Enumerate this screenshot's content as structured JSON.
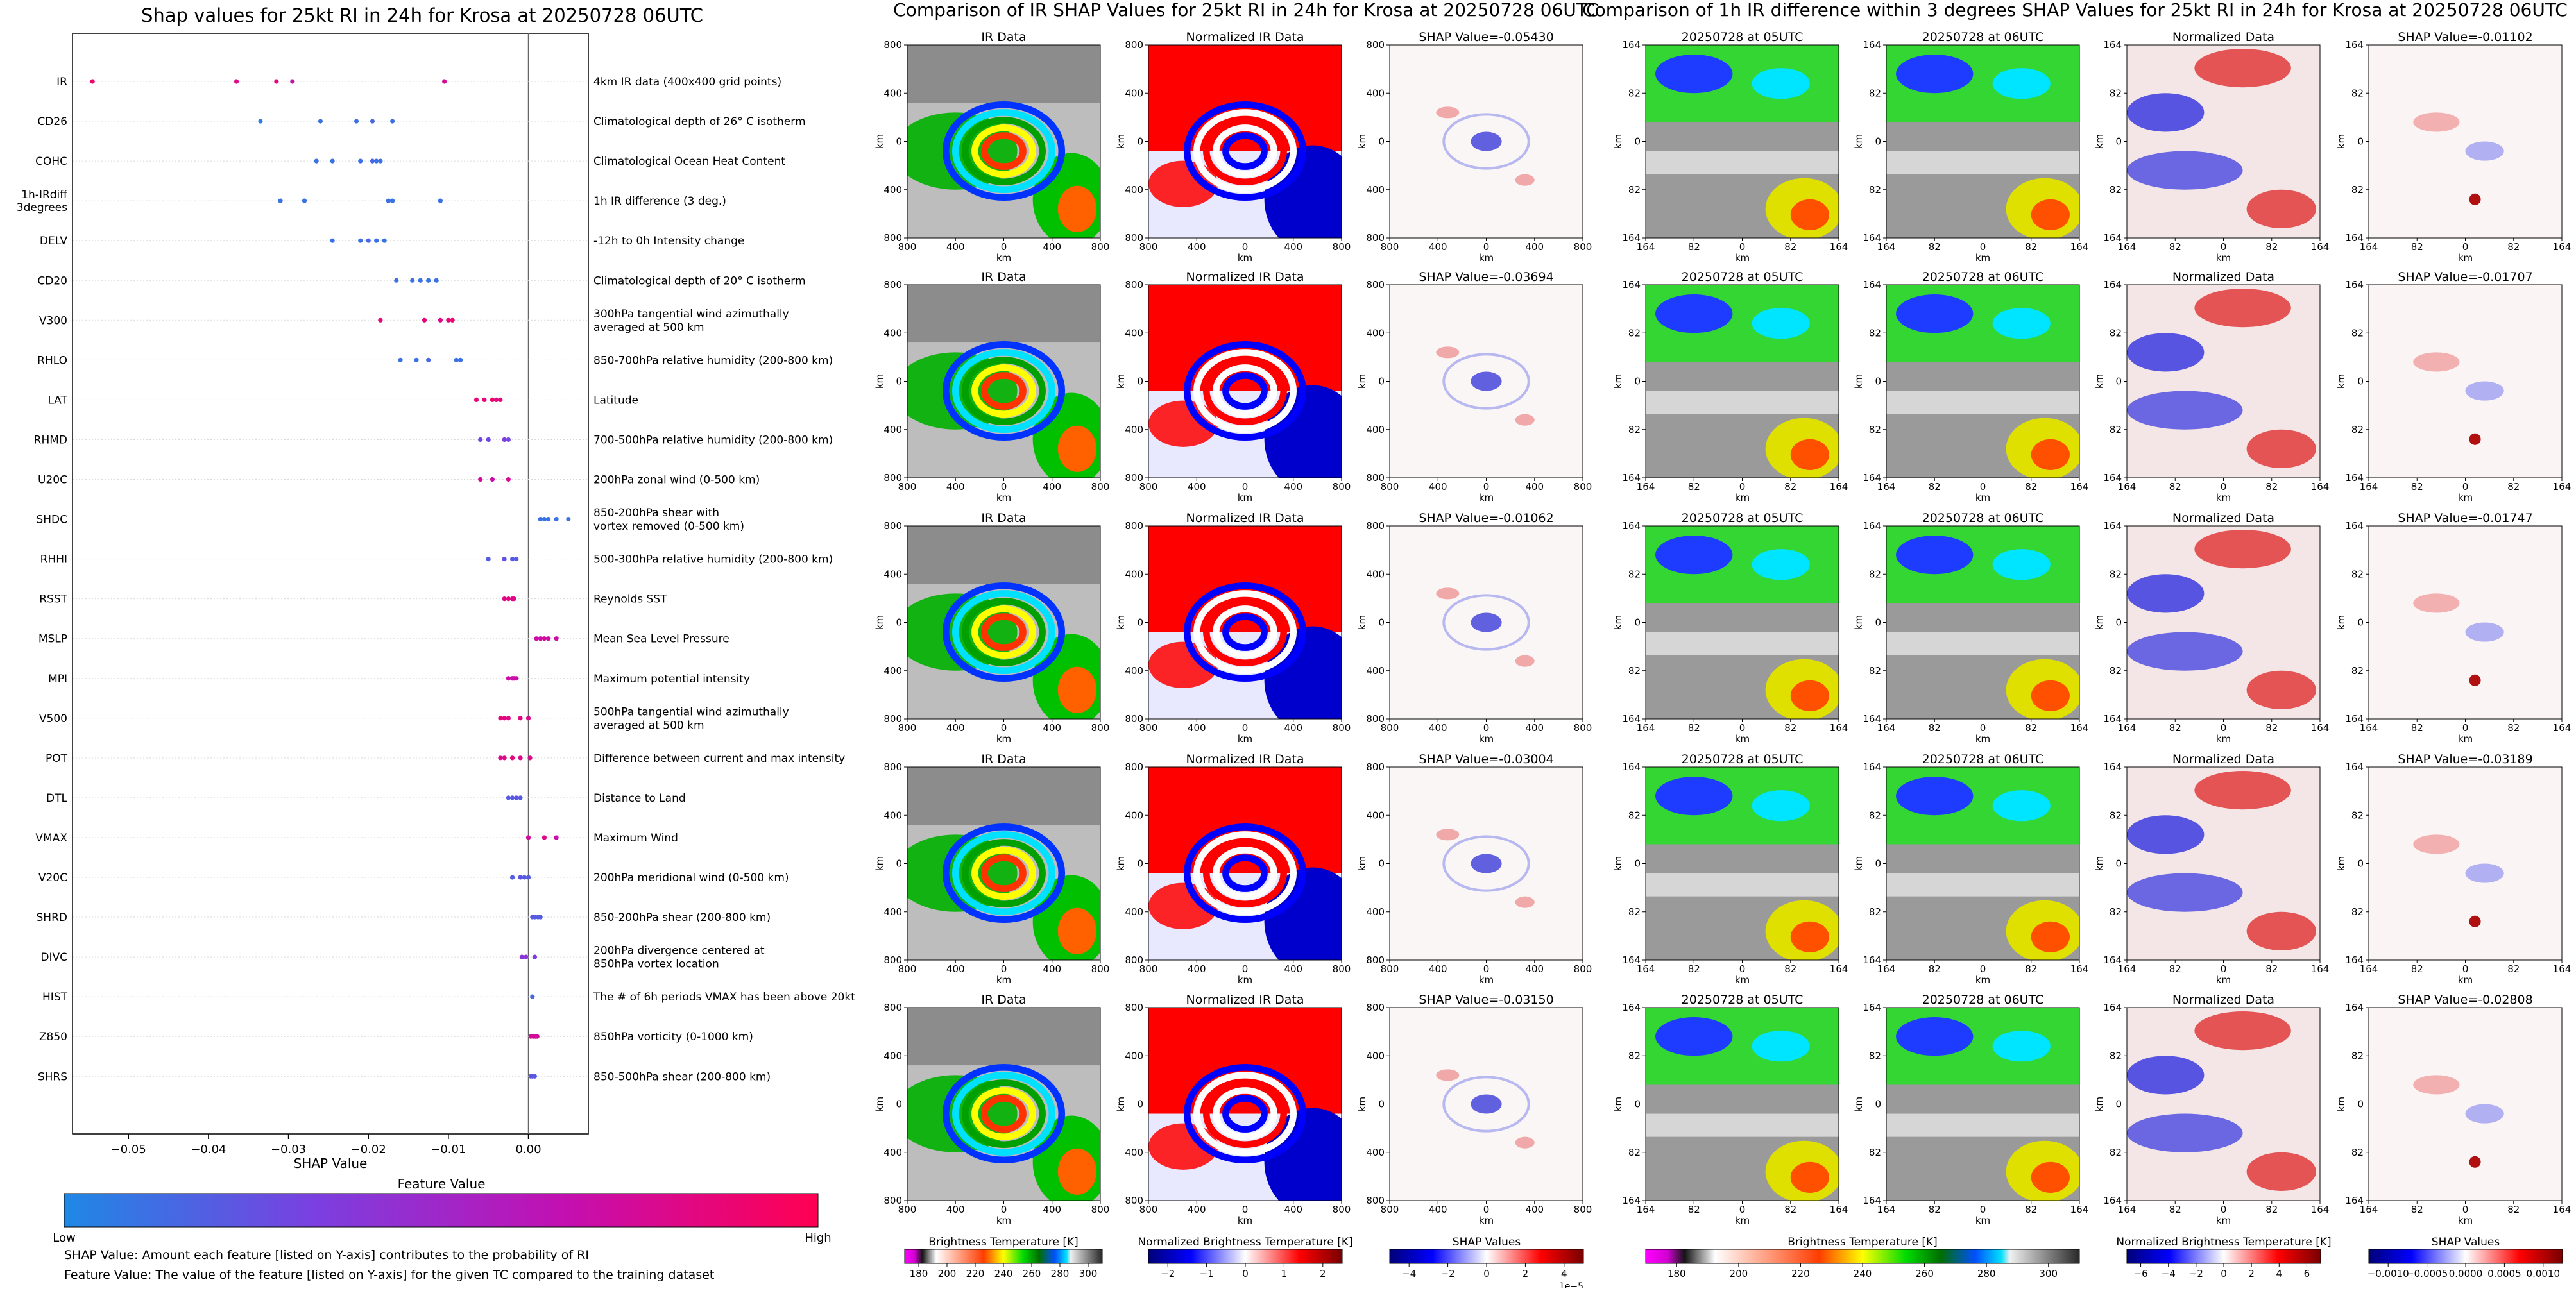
{
  "left_title": "Shap values for 25kt RI in 24h for Krosa at 20250728 06UTC",
  "mid_title": "Comparison of IR SHAP Values for 25kt RI in 24h for Krosa at 20250728 06UTC",
  "right_title": "Comparison of 1h IR difference within 3 degrees SHAP Values for 25kt RI in 24h for Krosa at 20250728 06UTC",
  "notes": {
    "line1": "SHAP Value: Amount each feature [listed on Y-axis] contributes to the probability of RI",
    "line2": "Feature Value: The value of the feature [listed on Y-axis] for the given TC compared to the training dataset"
  },
  "feature_colorbar": {
    "title": "Feature Value",
    "low": "Low",
    "high": "High",
    "colors": [
      "#1e88e5",
      "#7b3fe0",
      "#c40fb0",
      "#ff0052"
    ]
  },
  "chart_data": [
    {
      "type": "scatter",
      "title": "Shap values for 25kt RI in 24h for Krosa at 20250728 06UTC",
      "xlabel": "SHAP Value",
      "xlim": [
        -0.057,
        0.0075
      ],
      "xticks": [
        -0.05,
        -0.04,
        -0.03,
        -0.02,
        -0.01,
        0.0
      ],
      "xtick_labels": [
        "−0.05",
        "−0.04",
        "−0.03",
        "−0.02",
        "−0.01",
        "0.00"
      ],
      "features": [
        {
          "name": "IR",
          "desc": [
            "4km IR data (400x400 grid points)"
          ],
          "points": [
            [
              -0.0545,
              0.9
            ],
            [
              -0.0365,
              0.8
            ],
            [
              -0.0315,
              0.85
            ],
            [
              -0.0295,
              0.7
            ],
            [
              -0.0105,
              0.75
            ]
          ]
        },
        {
          "name": "CD26",
          "desc": [
            "Climatological depth of 26° C isotherm"
          ],
          "points": [
            [
              -0.0335,
              0.05
            ],
            [
              -0.026,
              0.1
            ],
            [
              -0.0215,
              0.1
            ],
            [
              -0.0195,
              0.15
            ],
            [
              -0.017,
              0.1
            ]
          ]
        },
        {
          "name": "COHC",
          "desc": [
            "Climatological Ocean Heat Content"
          ],
          "points": [
            [
              -0.0265,
              0.1
            ],
            [
              -0.0245,
              0.1
            ],
            [
              -0.021,
              0.1
            ],
            [
              -0.0195,
              0.15
            ],
            [
              -0.019,
              0.1
            ],
            [
              -0.0185,
              0.1
            ]
          ]
        },
        {
          "name": "1h-IRdiff|3degrees",
          "desc": [
            "1h IR difference (3 deg.)"
          ],
          "points": [
            [
              -0.031,
              0.1
            ],
            [
              -0.028,
              0.1
            ],
            [
              -0.0175,
              0.1
            ],
            [
              -0.017,
              0.1
            ],
            [
              -0.011,
              0.1
            ]
          ]
        },
        {
          "name": "DELV",
          "desc": [
            "-12h to 0h Intensity change"
          ],
          "points": [
            [
              -0.0245,
              0.1
            ],
            [
              -0.021,
              0.1
            ],
            [
              -0.02,
              0.15
            ],
            [
              -0.019,
              0.1
            ],
            [
              -0.018,
              0.1
            ]
          ]
        },
        {
          "name": "CD20",
          "desc": [
            "Climatological depth of 20° C isotherm"
          ],
          "points": [
            [
              -0.0165,
              0.1
            ],
            [
              -0.0145,
              0.1
            ],
            [
              -0.0135,
              0.1
            ],
            [
              -0.0125,
              0.1
            ],
            [
              -0.0115,
              0.1
            ]
          ]
        },
        {
          "name": "V300",
          "desc": [
            "300hPa tangential wind azimuthally",
            "averaged at 500 km"
          ],
          "points": [
            [
              -0.0185,
              0.85
            ],
            [
              -0.013,
              0.85
            ],
            [
              -0.011,
              0.8
            ],
            [
              -0.01,
              0.85
            ],
            [
              -0.0095,
              0.9
            ]
          ]
        },
        {
          "name": "RHLO",
          "desc": [
            "850-700hPa relative humidity (200-800 km)"
          ],
          "points": [
            [
              -0.016,
              0.1
            ],
            [
              -0.014,
              0.1
            ],
            [
              -0.0125,
              0.15
            ],
            [
              -0.009,
              0.1
            ],
            [
              -0.0085,
              0.1
            ]
          ]
        },
        {
          "name": "LAT",
          "desc": [
            "Latitude"
          ],
          "points": [
            [
              -0.0065,
              0.85
            ],
            [
              -0.0055,
              0.85
            ],
            [
              -0.0045,
              0.9
            ],
            [
              -0.004,
              0.85
            ],
            [
              -0.0035,
              0.85
            ]
          ]
        },
        {
          "name": "RHMD",
          "desc": [
            "700-500hPa relative humidity (200-800 km)"
          ],
          "points": [
            [
              -0.006,
              0.3
            ],
            [
              -0.005,
              0.3
            ],
            [
              -0.003,
              0.35
            ],
            [
              -0.0025,
              0.3
            ]
          ]
        },
        {
          "name": "U20C",
          "desc": [
            "200hPa zonal wind (0-500 km)"
          ],
          "points": [
            [
              -0.006,
              0.75
            ],
            [
              -0.0045,
              0.7
            ],
            [
              -0.0025,
              0.75
            ]
          ]
        },
        {
          "name": "SHDC",
          "desc": [
            "850-200hPa shear with",
            "vortex removed (0-500 km)"
          ],
          "points": [
            [
              0.0015,
              0.1
            ],
            [
              0.002,
              0.1
            ],
            [
              0.0025,
              0.1
            ],
            [
              0.0035,
              0.1
            ],
            [
              0.005,
              0.1
            ]
          ]
        },
        {
          "name": "RHHI",
          "desc": [
            "500-300hPa relative humidity (200-800 km)"
          ],
          "points": [
            [
              -0.005,
              0.2
            ],
            [
              -0.003,
              0.25
            ],
            [
              -0.002,
              0.2
            ],
            [
              -0.0015,
              0.2
            ]
          ]
        },
        {
          "name": "RSST",
          "desc": [
            "Reynolds SST"
          ],
          "points": [
            [
              -0.003,
              0.8
            ],
            [
              -0.0025,
              0.85
            ],
            [
              -0.002,
              0.8
            ],
            [
              -0.0018,
              0.8
            ]
          ]
        },
        {
          "name": "MSLP",
          "desc": [
            "Mean Sea Level Pressure"
          ],
          "points": [
            [
              0.001,
              0.7
            ],
            [
              0.0015,
              0.7
            ],
            [
              0.002,
              0.75
            ],
            [
              0.0025,
              0.7
            ],
            [
              0.0035,
              0.7
            ]
          ]
        },
        {
          "name": "MPI",
          "desc": [
            "Maximum potential intensity"
          ],
          "points": [
            [
              -0.0025,
              0.7
            ],
            [
              -0.002,
              0.7
            ],
            [
              -0.0018,
              0.7
            ],
            [
              -0.0015,
              0.7
            ]
          ]
        },
        {
          "name": "V500",
          "desc": [
            "500hPa tangential wind azimuthally",
            "averaged at 500 km"
          ],
          "points": [
            [
              -0.0035,
              0.85
            ],
            [
              -0.003,
              0.85
            ],
            [
              -0.0025,
              0.8
            ],
            [
              -0.001,
              0.85
            ],
            [
              0.0,
              0.8
            ]
          ]
        },
        {
          "name": "POT",
          "desc": [
            "Difference between current and max intensity"
          ],
          "points": [
            [
              -0.0035,
              0.8
            ],
            [
              -0.003,
              0.8
            ],
            [
              -0.002,
              0.85
            ],
            [
              -0.001,
              0.8
            ],
            [
              0.0002,
              0.8
            ]
          ]
        },
        {
          "name": "DTL",
          "desc": [
            "Distance to Land"
          ],
          "points": [
            [
              -0.0025,
              0.2
            ],
            [
              -0.002,
              0.2
            ],
            [
              -0.0015,
              0.25
            ],
            [
              -0.001,
              0.2
            ]
          ]
        },
        {
          "name": "VMAX",
          "desc": [
            "Maximum Wind"
          ],
          "points": [
            [
              0.0,
              0.75
            ],
            [
              0.002,
              0.8
            ],
            [
              0.0035,
              0.7
            ]
          ]
        },
        {
          "name": "V20C",
          "desc": [
            "200hPa meridional wind (0-500 km)"
          ],
          "points": [
            [
              -0.002,
              0.2
            ],
            [
              -0.001,
              0.25
            ],
            [
              -0.0005,
              0.2
            ],
            [
              0.0,
              0.2
            ]
          ]
        },
        {
          "name": "SHRD",
          "desc": [
            "850-200hPa shear (200-800 km)"
          ],
          "points": [
            [
              0.0005,
              0.2
            ],
            [
              0.0008,
              0.2
            ],
            [
              0.0012,
              0.2
            ],
            [
              0.0015,
              0.2
            ]
          ]
        },
        {
          "name": "DIVC",
          "desc": [
            "200hPa divergence centered at",
            "850hPa vortex location"
          ],
          "points": [
            [
              -0.0008,
              0.4
            ],
            [
              -0.0003,
              0.4
            ],
            [
              0.0008,
              0.35
            ]
          ]
        },
        {
          "name": "HIST",
          "desc": [
            "The # of 6h periods VMAX has been above 20kt"
          ],
          "points": [
            [
              0.0005,
              0.15
            ]
          ]
        },
        {
          "name": "Z850",
          "desc": [
            "850hPa vorticity (0-1000 km)"
          ],
          "points": [
            [
              0.0003,
              0.75
            ],
            [
              0.0006,
              0.75
            ],
            [
              0.0009,
              0.75
            ],
            [
              0.0011,
              0.75
            ]
          ]
        },
        {
          "name": "SHRS",
          "desc": [
            "850-500hPa shear (200-800 km)"
          ],
          "points": [
            [
              0.0003,
              0.2
            ],
            [
              0.0005,
              0.25
            ],
            [
              0.0008,
              0.2
            ]
          ]
        }
      ]
    },
    {
      "type": "heatmap",
      "title": "Comparison of IR SHAP Values for 25kt RI in 24h for Krosa at 20250728 06UTC",
      "rows": 5,
      "columns": [
        {
          "title": "IR Data",
          "kind": "ir"
        },
        {
          "title": "Normalized IR Data",
          "kind": "norm"
        },
        {
          "title": "SHAP Value",
          "kind": "shap"
        }
      ],
      "shap_values": [
        "-0.05430",
        "-0.03694",
        "-0.01062",
        "-0.03004",
        "-0.03150"
      ],
      "axis_label": "km",
      "xtick_labels": [
        "800",
        "400",
        "0",
        "400",
        "800"
      ],
      "ytick_labels": [
        "800",
        "400",
        "0",
        "400",
        "800"
      ],
      "colorbars": [
        {
          "label": "Brightness Temperature [K]",
          "ticks": [
            "180",
            "200",
            "220",
            "240",
            "260",
            "280",
            "300"
          ],
          "extra": ""
        },
        {
          "label": "Normalized Brightness Temperature [K]",
          "ticks": [
            "−2",
            "−1",
            "0",
            "1",
            "2"
          ],
          "extra": ""
        },
        {
          "label": "SHAP Values",
          "ticks": [
            "−4",
            "−2",
            "0",
            "2",
            "4"
          ],
          "extra": "1e−5"
        }
      ]
    },
    {
      "type": "heatmap",
      "title": "Comparison of 1h IR difference within 3 degrees SHAP Values for 25kt RI in 24h for Krosa at 20250728 06UTC",
      "rows": 5,
      "columns": [
        {
          "title": "20250728 at 05UTC",
          "kind": "ir"
        },
        {
          "title": "20250728 at 06UTC",
          "kind": "ir"
        },
        {
          "title": "Normalized Data",
          "kind": "norm"
        },
        {
          "title": "SHAP Value",
          "kind": "shap"
        }
      ],
      "shap_values": [
        "-0.01102",
        "-0.01707",
        "-0.01747",
        "-0.03189",
        "-0.02808"
      ],
      "axis_label": "km",
      "xtick_labels": [
        "164",
        "82",
        "0",
        "82",
        "164"
      ],
      "ytick_labels": [
        "164",
        "82",
        "0",
        "82",
        "164"
      ],
      "colorbars": [
        {
          "label": "Brightness Temperature [K]",
          "ticks": [
            "180",
            "200",
            "220",
            "240",
            "260",
            "280",
            "300"
          ],
          "extra": ""
        },
        {
          "label": "Normalized Brightness Temperature [K]",
          "ticks": [
            "−6",
            "−4",
            "−2",
            "0",
            "2",
            "4",
            "6"
          ],
          "extra": ""
        },
        {
          "label": "SHAP Values",
          "ticks": [
            "−0.0010",
            "−0.0005",
            "0.0000",
            "0.0005",
            "0.0010"
          ],
          "extra": ""
        }
      ]
    }
  ]
}
